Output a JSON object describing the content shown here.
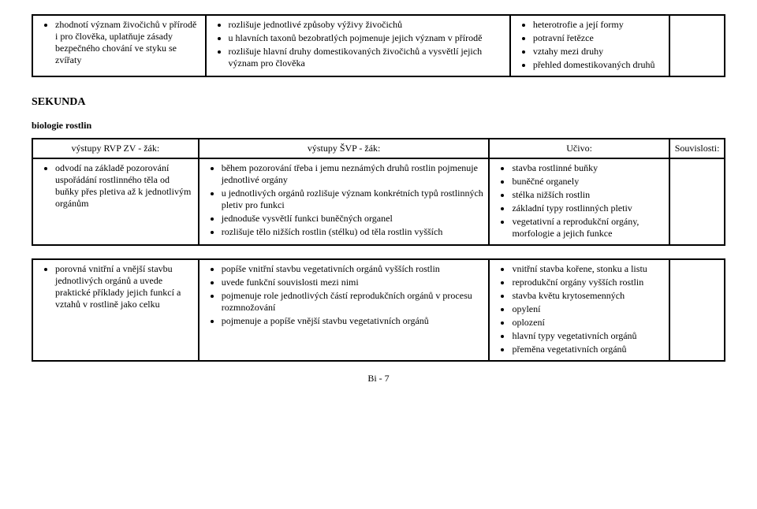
{
  "top_table": {
    "r1c1": [
      "zhodnotí význam živočichů v přírodě i pro člověka, uplatňuje zásady bezpečného chování ve styku se zvířaty"
    ],
    "r1c2": [
      "rozlišuje jednotlivé způsoby výživy živočichů",
      "u hlavních taxonů bezobratlých pojmenuje jejich význam v přírodě",
      "rozlišuje hlavní druhy domestikovaných živočichů a vysvětlí jejich význam pro člověka"
    ],
    "r1c3": [
      "heterotrofie a její formy",
      "potravní řetězce",
      "vztahy mezi druhy",
      "přehled domestikovaných druhů"
    ]
  },
  "section_title": "SEKUNDA",
  "subtitle": "biologie rostlin",
  "headers": {
    "h1": "výstupy RVP ZV - žák:",
    "h2": "výstupy ŠVP - žák:",
    "h3": "Učivo:",
    "h4": "Souvislosti:"
  },
  "rowA": {
    "c1": [
      "odvodí na základě pozorování uspořádání rostlinného těla od buňky přes pletiva až k jednotlivým orgánům"
    ],
    "c2": [
      "během pozorování třeba i jemu neznámých druhů rostlin pojmenuje jednotlivé orgány",
      "u jednotlivých orgánů rozlišuje význam konkrétních typů rostlinných pletiv pro funkci",
      "jednoduše vysvětlí funkci buněčných organel",
      "rozlišuje tělo nižších rostlin (stélku) od těla rostlin vyšších"
    ],
    "c3": [
      "stavba rostlinné buňky",
      "buněčné organely",
      "stélka nižších rostlin",
      "základní typy rostlinných pletiv",
      "vegetativní a reprodukční orgány, morfologie a jejich funkce"
    ]
  },
  "rowB": {
    "c1": [
      "porovná vnitřní a vnější stavbu jednotlivých orgánů a uvede praktické příklady jejich funkcí a vztahů v rostlině jako celku"
    ],
    "c2": [
      "popíše vnitřní stavbu vegetativních orgánů vyšších rostlin",
      "uvede funkční souvislosti mezi nimi",
      "pojmenuje role jednotlivých částí reprodukčních orgánů v procesu rozmnožování",
      "pojmenuje a popíše vnější stavbu vegetativních orgánů"
    ],
    "c3": [
      "vnitřní stavba kořene, stonku a listu",
      "reprodukční orgány vyšších rostlin",
      "stavba květu krytosemenných",
      "opylení",
      "oplození",
      "hlavní typy vegetativních orgánů",
      "přeměna vegetativních orgánů"
    ]
  },
  "page_number": "Bi - 7"
}
